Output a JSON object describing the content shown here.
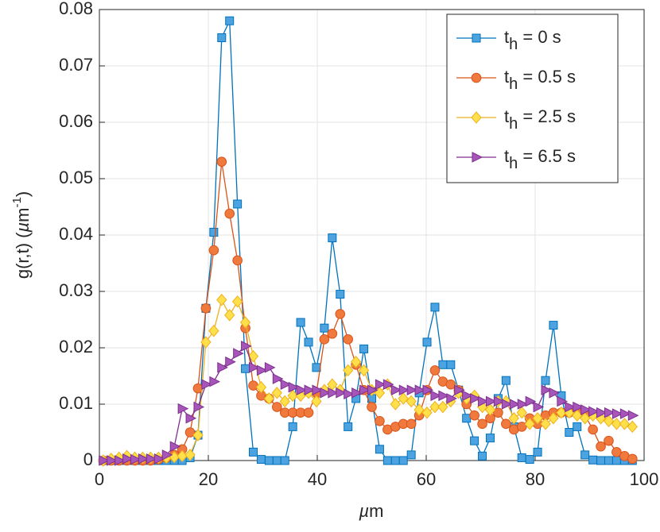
{
  "chart_data": {
    "type": "line",
    "xlabel": "µm",
    "ylabel": "g(r,t) (µm-1)",
    "x": [
      0.7,
      2.15,
      3.6,
      5.05,
      6.5,
      7.95,
      9.4,
      10.85,
      12.3,
      13.75,
      15.2,
      16.65,
      18.1,
      19.55,
      21,
      22.45,
      23.9,
      25.35,
      26.8,
      28.25,
      29.7,
      31.15,
      32.6,
      34.05,
      35.5,
      36.95,
      38.4,
      39.85,
      41.3,
      42.75,
      44.2,
      45.65,
      47.1,
      48.55,
      50,
      51.45,
      52.9,
      54.35,
      55.8,
      57.25,
      58.7,
      60.15,
      61.6,
      63.05,
      64.5,
      65.95,
      67.4,
      68.85,
      70.3,
      71.75,
      73.2,
      74.65,
      76.1,
      77.55,
      79,
      80.45,
      81.9,
      83.35,
      84.8,
      86.25,
      87.7,
      89.15,
      90.6,
      92.05,
      93.5,
      94.95,
      96.4,
      97.85
    ],
    "series": [
      {
        "name": "th = 0 s",
        "color": "#0072BD",
        "marker_color": "#4DA3E0",
        "marker": "square",
        "values": [
          0,
          0,
          0,
          0,
          0,
          0,
          0,
          0,
          0,
          0,
          0,
          0.0005,
          0.0045,
          0.027,
          0.0405,
          0.075,
          0.078,
          0.0455,
          0.0163,
          0.0015,
          0.0002,
          0,
          0,
          0,
          0.006,
          0.0245,
          0.021,
          0.0165,
          0.0235,
          0.0395,
          0.0295,
          0.006,
          0.011,
          0.0198,
          0.011,
          0.002,
          0,
          0,
          0,
          0.001,
          0.012,
          0.021,
          0.0272,
          0.017,
          0.017,
          0.0125,
          0.0075,
          0.0035,
          0.0008,
          0.004,
          0.011,
          0.0142,
          0.006,
          0.0005,
          0.0002,
          0.0015,
          0.0142,
          0.024,
          0.0115,
          0.005,
          0.006,
          0.001,
          0.0001,
          0,
          0,
          0,
          0,
          0
        ]
      },
      {
        "name": "th = 0.5 s",
        "color": "#D95319",
        "marker_color": "#F07A3E",
        "marker": "circle",
        "values": [
          0,
          0,
          0,
          0,
          0,
          0,
          0,
          0.0002,
          0.0005,
          0.001,
          0.002,
          0.005,
          0.0128,
          0.027,
          0.0373,
          0.053,
          0.0438,
          0.0355,
          0.0235,
          0.0133,
          0.0115,
          0.011,
          0.0095,
          0.0085,
          0.0085,
          0.0085,
          0.0085,
          0.012,
          0.0215,
          0.0225,
          0.026,
          0.0215,
          0.017,
          0.0125,
          0.0095,
          0.007,
          0.0055,
          0.006,
          0.0065,
          0.0065,
          0.008,
          0.0125,
          0.016,
          0.014,
          0.0135,
          0.0125,
          0.01,
          0.008,
          0.0065,
          0.0075,
          0.0085,
          0.0065,
          0.0055,
          0.006,
          0.0075,
          0.0065,
          0.008,
          0.0085,
          0.0085,
          0.0085,
          0.0085,
          0.008,
          0.0055,
          0.0025,
          0.0035,
          0.0015,
          0.0008,
          0.0003
        ]
      },
      {
        "name": "th = 2.5 s",
        "color": "#EDB120",
        "marker_color": "#FFE04A",
        "marker": "diamond",
        "values": [
          0,
          0.0003,
          0.0005,
          0.0008,
          0.0005,
          0.0005,
          0.0005,
          0.0005,
          0.0005,
          0.0006,
          0.0008,
          0.001,
          0.0045,
          0.021,
          0.023,
          0.0285,
          0.0258,
          0.0282,
          0.0245,
          0.0185,
          0.013,
          0.011,
          0.012,
          0.0105,
          0.0115,
          0.0115,
          0.012,
          0.0105,
          0.0125,
          0.0135,
          0.0125,
          0.016,
          0.0175,
          0.016,
          0.0125,
          0.012,
          0.0135,
          0.01,
          0.011,
          0.0105,
          0.009,
          0.0085,
          0.0095,
          0.0095,
          0.0105,
          0.012,
          0.011,
          0.0115,
          0.0095,
          0.009,
          0.0105,
          0.0105,
          0.0075,
          0.0085,
          0.0065,
          0.0075,
          0.0065,
          0.0075,
          0.0085,
          0.0085,
          0.008,
          0.0075,
          0.008,
          0.0075,
          0.007,
          0.0065,
          0.0065,
          0.006
        ]
      },
      {
        "name": "th = 6.5 s",
        "color": "#7E2F8E",
        "marker_color": "#A655B8",
        "marker": "triangle-right",
        "values": [
          0,
          0,
          0,
          0.0003,
          0.0002,
          0.0003,
          0.0003,
          0.0003,
          0.001,
          0.0025,
          0.0092,
          0.0075,
          0.0095,
          0.0135,
          0.014,
          0.0165,
          0.0175,
          0.019,
          0.0203,
          0.0165,
          0.016,
          0.0165,
          0.0145,
          0.0135,
          0.013,
          0.0125,
          0.0125,
          0.0125,
          0.012,
          0.012,
          0.012,
          0.0118,
          0.012,
          0.0125,
          0.0125,
          0.0135,
          0.0135,
          0.0125,
          0.0125,
          0.0125,
          0.0125,
          0.0125,
          0.0115,
          0.0115,
          0.011,
          0.0125,
          0.0115,
          0.011,
          0.0105,
          0.0105,
          0.0105,
          0.01,
          0.01,
          0.01,
          0.0105,
          0.0095,
          0.0125,
          0.012,
          0.0105,
          0.0095,
          0.0095,
          0.009,
          0.0087,
          0.0085,
          0.0085,
          0.0083,
          0.0083,
          0.008
        ]
      }
    ],
    "xlim": [
      0,
      100
    ],
    "xticks": [
      0,
      20,
      40,
      60,
      80,
      100
    ],
    "ylim": [
      0,
      0.08
    ],
    "yticks": [
      0,
      0.01,
      0.02,
      0.03,
      0.04,
      0.05,
      0.06,
      0.07,
      0.08
    ],
    "grid": true,
    "legend": "upper right"
  }
}
